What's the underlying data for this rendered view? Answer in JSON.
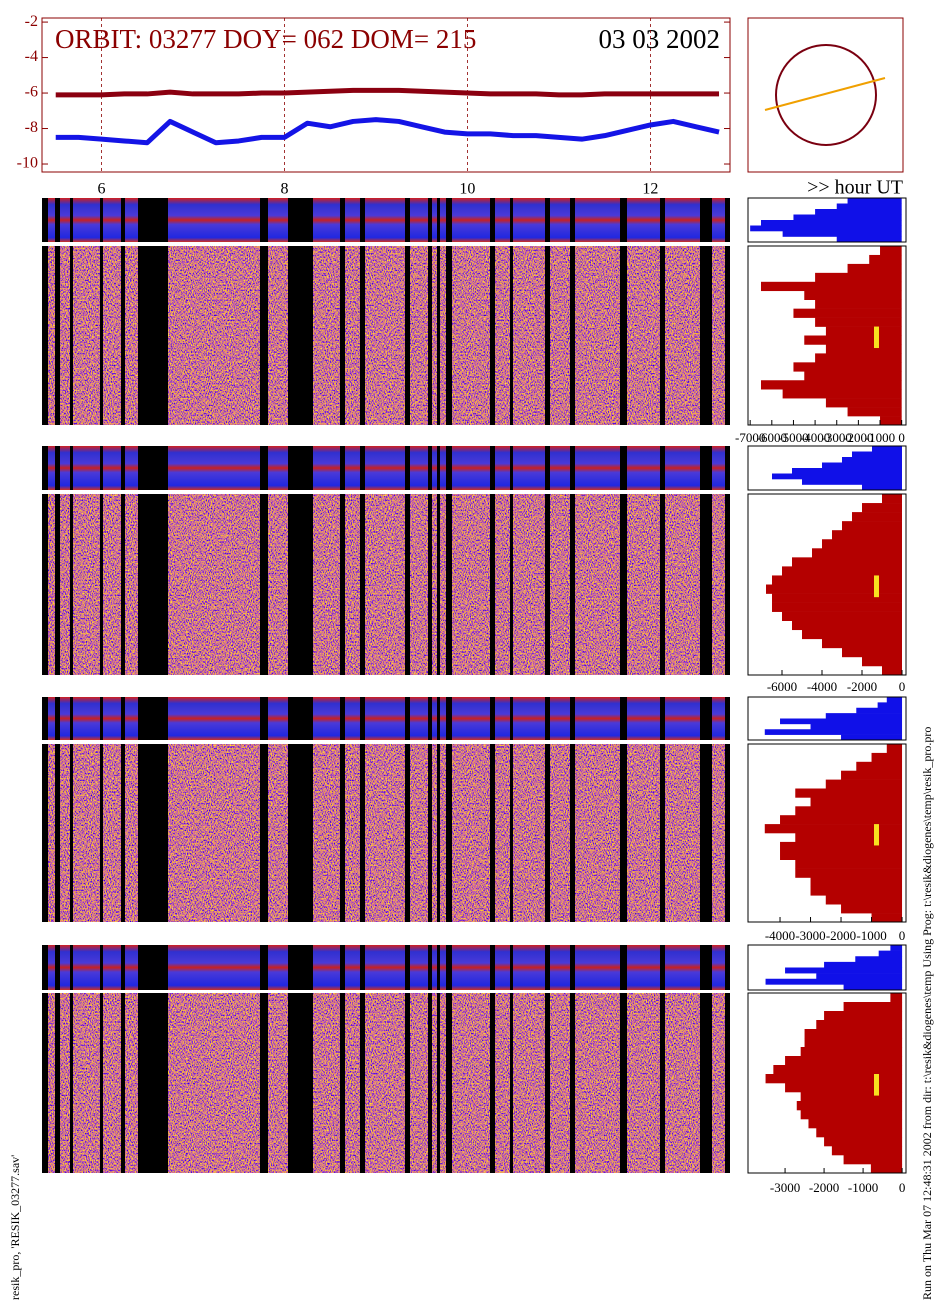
{
  "chart_data": [
    {
      "type": "line",
      "title": "ORBIT: 03277 DOY=  062 DOM=  215",
      "date_label": "03 03 2002",
      "x_axis_label": ">> hour UT",
      "x": [
        5.5,
        5.75,
        6,
        6.25,
        6.5,
        6.75,
        7,
        7.25,
        7.5,
        7.75,
        8,
        8.25,
        8.5,
        8.75,
        9,
        9.25,
        9.5,
        9.75,
        10,
        10.25,
        10.5,
        10.75,
        11,
        11.25,
        11.5,
        11.75,
        12,
        12.25,
        12.5,
        12.75
      ],
      "series": [
        {
          "color": "#8b0010",
          "values": [
            -6.1,
            -6.1,
            -6.1,
            -6.05,
            -6.05,
            -5.95,
            -6.05,
            -6.05,
            -6.05,
            -6.0,
            -6.0,
            -5.95,
            -5.9,
            -5.85,
            -5.85,
            -5.85,
            -5.9,
            -5.95,
            -6.0,
            -6.05,
            -6.05,
            -6.05,
            -6.1,
            -6.1,
            -6.05,
            -6.05,
            -6.05,
            -6.05,
            -6.05,
            -6.05
          ]
        },
        {
          "color": "#1414e6",
          "values": [
            -8.5,
            -8.5,
            -8.6,
            -8.7,
            -8.8,
            -7.6,
            -8.2,
            -8.8,
            -8.7,
            -8.5,
            -8.5,
            -7.7,
            -7.9,
            -7.6,
            -7.5,
            -7.6,
            -7.9,
            -8.2,
            -8.3,
            -8.3,
            -8.4,
            -8.4,
            -8.5,
            -8.6,
            -8.4,
            -8.1,
            -7.8,
            -7.6,
            -7.9,
            -8.2
          ]
        }
      ],
      "xlim": [
        5.35,
        12.87
      ],
      "xticks": [
        6,
        8,
        10,
        12
      ],
      "ylim": [
        -10.45,
        -1.77
      ],
      "yticks": [
        -2,
        -4,
        -6,
        -8,
        -10
      ],
      "grid": true
    },
    {
      "type": "profile",
      "color": "#b40000",
      "inset_color": "#1010e8",
      "xlim": [
        -7100,
        200
      ],
      "xticks": [
        -7000,
        -6000,
        -5000,
        -4000,
        -3000,
        -2000,
        -1000,
        0
      ],
      "values": [
        -1000,
        -1500,
        -2500,
        -4000,
        -6500,
        -4500,
        -4000,
        -5000,
        -4000,
        -3500,
        -4500,
        -3500,
        -4000,
        -5000,
        -4500,
        -6500,
        -5500,
        -3500,
        -2500,
        -1000
      ],
      "inset_values": [
        -2500,
        -3000,
        -4000,
        -5000,
        -6500,
        -7000,
        -5500,
        -3000
      ]
    },
    {
      "type": "profile",
      "color": "#b40000",
      "inset_color": "#1010e8",
      "xlim": [
        -7700,
        200
      ],
      "xticks": [
        -6000,
        -4000,
        -2000,
        0
      ],
      "values": [
        -1000,
        -2000,
        -2500,
        -3000,
        -3500,
        -4000,
        -4500,
        -5500,
        -6000,
        -6500,
        -6800,
        -6500,
        -6500,
        -6000,
        -5500,
        -5000,
        -4000,
        -3000,
        -2000,
        -1000
      ],
      "inset_values": [
        -1500,
        -2500,
        -3000,
        -4000,
        -5500,
        -6500,
        -5000,
        -2000
      ]
    },
    {
      "type": "profile",
      "color": "#b40000",
      "inset_color": "#1010e8",
      "xlim": [
        -5050,
        130
      ],
      "xticks": [
        -4000,
        -3000,
        -2000,
        -1000,
        0
      ],
      "values": [
        -500,
        -1000,
        -1500,
        -2000,
        -2500,
        -3500,
        -3000,
        -3500,
        -4000,
        -4500,
        -3500,
        -4000,
        -4000,
        -3500,
        -3500,
        -3000,
        -3000,
        -2500,
        -2000,
        -1000
      ],
      "inset_values": [
        -500,
        -800,
        -1500,
        -2500,
        -4000,
        -3000,
        -4500,
        -2000
      ]
    },
    {
      "type": "profile",
      "color": "#b40000",
      "inset_color": "#1010e8",
      "xlim": [
        -3950,
        100
      ],
      "xticks": [
        -3000,
        -2000,
        -1000,
        0
      ],
      "values": [
        -300,
        -1500,
        -2000,
        -2200,
        -2500,
        -2500,
        -2600,
        -3000,
        -3300,
        -3500,
        -3000,
        -2600,
        -2700,
        -2600,
        -2400,
        -2200,
        -2000,
        -1800,
        -1500,
        -800
      ],
      "inset_values": [
        -300,
        -600,
        -1200,
        -2000,
        -3000,
        -2200,
        -3500,
        -1500
      ]
    }
  ],
  "footer": {
    "left": "resik_pro, 'RESIK_03277.sav'",
    "right": "Run on Thu Mar 07 12:48:31 2002  from dir: t:\\resik&diogenes\\temp Using Prog: t:\\resik&diogenes\\temp\\resik_pro.pro"
  }
}
